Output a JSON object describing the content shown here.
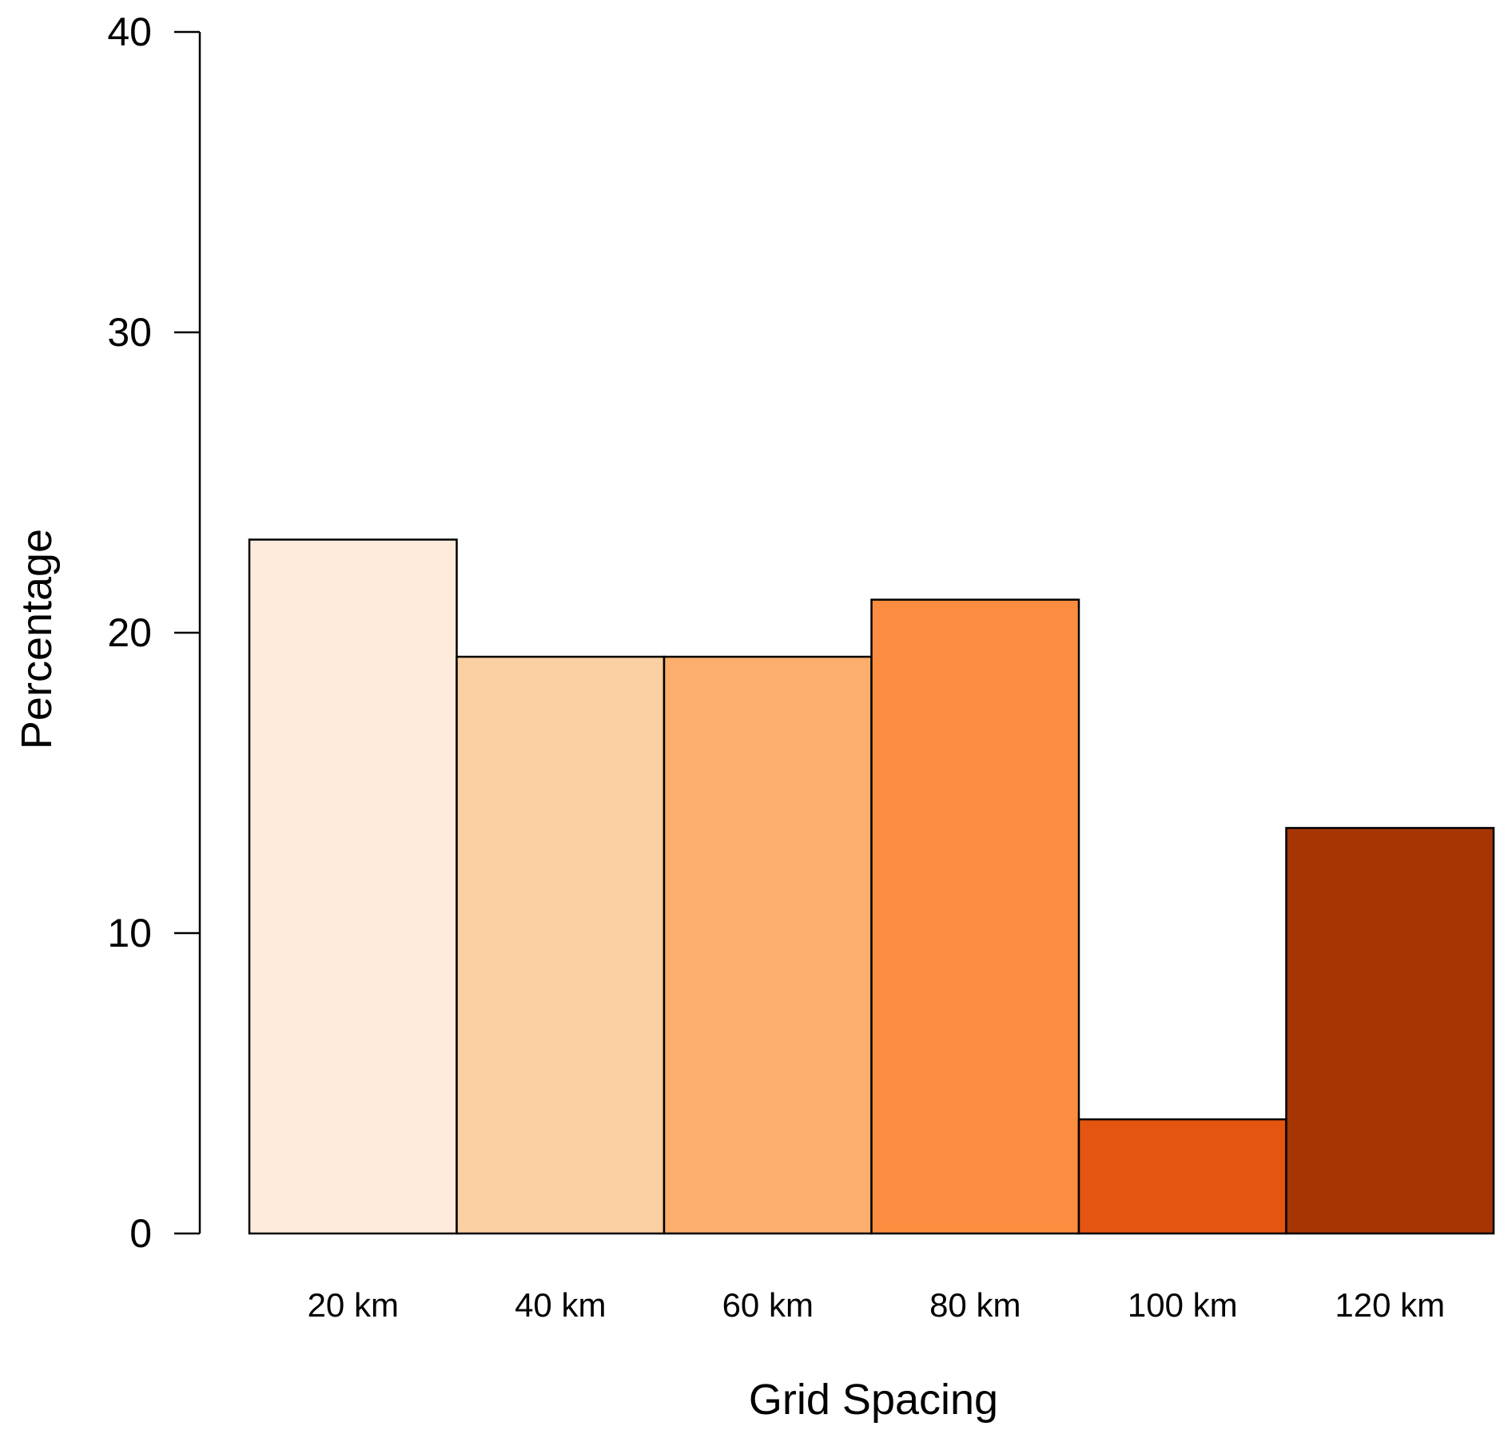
{
  "chart_data": {
    "type": "bar",
    "categories": [
      "20 km",
      "40 km",
      "60 km",
      "80 km",
      "100 km",
      "120 km"
    ],
    "values": [
      23.1,
      19.2,
      19.2,
      21.1,
      3.8,
      13.5
    ],
    "colors": [
      "#FEEBDB",
      "#FACFA1",
      "#FBAE6D",
      "#FC8D40",
      "#E45511",
      "#A63504"
    ],
    "xlabel": "Grid Spacing",
    "ylabel": "Percentage",
    "ylim": [
      0,
      40
    ],
    "yticks": [
      "0",
      "10",
      "20",
      "30",
      "40"
    ],
    "grid": false,
    "legend": "none"
  }
}
